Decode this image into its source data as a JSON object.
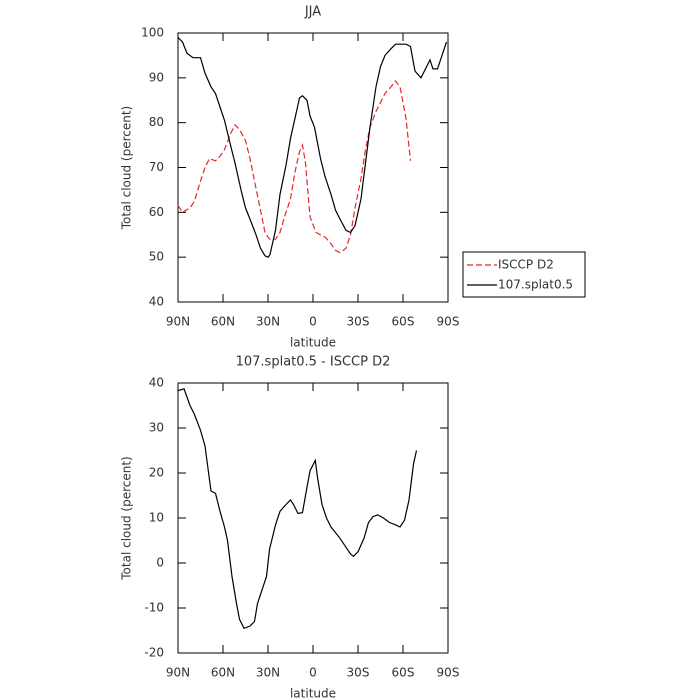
{
  "chart_data": [
    {
      "type": "line",
      "title": "JJA",
      "xlabel": "latitude",
      "ylabel": "Total cloud (percent)",
      "xlim": [
        90,
        -90
      ],
      "ylim": [
        40,
        100
      ],
      "xticks": [
        {
          "value": 90,
          "label": "90N"
        },
        {
          "value": 60,
          "label": "60N"
        },
        {
          "value": 30,
          "label": "30N"
        },
        0,
        {
          "value": -30,
          "label": "30S"
        },
        {
          "value": -60,
          "label": "60S"
        },
        {
          "value": -90,
          "label": "90S"
        }
      ],
      "yticks": [
        40,
        50,
        60,
        70,
        80,
        90,
        100
      ],
      "legend": "right",
      "series": [
        {
          "name": "ISCCP D2",
          "color": "#e8262a",
          "dashed": true,
          "x": [
            90,
            87,
            82,
            79,
            75,
            72,
            69,
            65,
            62,
            59,
            55,
            52,
            49,
            45,
            42,
            39,
            35,
            32,
            29,
            25,
            22,
            19,
            15,
            12,
            9,
            7,
            5,
            2,
            -2,
            -5,
            -8,
            -12,
            -15,
            -18,
            -22,
            -25,
            -28,
            -32,
            -35,
            -38,
            -42,
            -45,
            -48,
            -52,
            -55,
            -58,
            -62,
            -65
          ],
          "values": [
            61.5,
            60,
            61,
            62.5,
            67,
            70,
            72,
            71.5,
            72.5,
            74,
            77.5,
            79.5,
            78.5,
            76,
            72,
            67,
            60.5,
            55.5,
            54,
            54,
            55.5,
            59,
            63,
            69,
            73.5,
            75,
            71,
            59,
            55.5,
            55,
            54.5,
            53,
            51.5,
            51,
            52,
            55,
            61,
            67.5,
            74,
            79,
            82.5,
            84.5,
            86.5,
            88,
            89.3,
            88,
            81,
            71.5
          ]
        },
        {
          "name": "107.splat0.5",
          "color": "#000000",
          "dashed": false,
          "x": [
            90,
            87,
            84,
            80,
            75,
            72,
            68,
            65,
            62,
            59,
            55,
            52,
            48,
            45,
            42,
            38,
            35,
            32,
            30,
            28.7,
            25,
            22,
            18,
            15,
            12,
            9,
            7,
            4,
            2,
            -1,
            -5,
            -8,
            -12,
            -15,
            -18,
            -22,
            -25,
            -28,
            -32,
            -35,
            -38,
            -42,
            -45,
            -48,
            -52,
            -55,
            -58,
            -62,
            -65,
            -68,
            -72,
            -75,
            -78,
            -80,
            -83,
            -87,
            -89
          ],
          "values": [
            99,
            98,
            95.5,
            94.5,
            94.5,
            91,
            88,
            86.5,
            83.5,
            80.5,
            75,
            71,
            65,
            61,
            58.5,
            55,
            52,
            50.3,
            50,
            50.5,
            56,
            64,
            70.5,
            76.5,
            81,
            85.5,
            86,
            85,
            81.5,
            79,
            72,
            68,
            64,
            60.5,
            58.5,
            56,
            55.5,
            57,
            63,
            71,
            79,
            88,
            92.5,
            95,
            96.5,
            97.5,
            97.5,
            97.5,
            97,
            91.5,
            90,
            92,
            94,
            92,
            92,
            96,
            98
          ]
        }
      ]
    },
    {
      "type": "line",
      "title": "107.splat0.5 - ISCCP D2",
      "xlabel": "latitude",
      "ylabel": "Total cloud (percent)",
      "xlim": [
        90,
        -90
      ],
      "ylim": [
        -20,
        40
      ],
      "xticks": [
        {
          "value": 90,
          "label": "90N"
        },
        {
          "value": 60,
          "label": "60N"
        },
        {
          "value": 30,
          "label": "30N"
        },
        0,
        {
          "value": -30,
          "label": "30S"
        },
        {
          "value": -60,
          "label": "60S"
        },
        {
          "value": -90,
          "label": "90S"
        }
      ],
      "yticks": [
        -20,
        -10,
        0,
        10,
        20,
        30,
        40
      ],
      "series": [
        {
          "color": "#000000",
          "dashed": false,
          "x": [
            90,
            86,
            82,
            79,
            75,
            72,
            68,
            65,
            62,
            59,
            57,
            54,
            51,
            49,
            46,
            42,
            39,
            37,
            34,
            31,
            29,
            25,
            22,
            18,
            15,
            13,
            10,
            7,
            5,
            2,
            -1.5,
            -3,
            -6,
            -9,
            -12,
            -18,
            -22,
            -25,
            -27,
            -30,
            -34,
            -37,
            -40,
            -43,
            -47,
            -51,
            -55,
            -58,
            -61,
            -64,
            -67,
            -69
          ],
          "values": [
            38.3,
            38.7,
            35,
            33,
            29.5,
            26,
            16,
            15.5,
            11.5,
            8,
            5,
            -3,
            -9,
            -12.5,
            -14.5,
            -14,
            -13,
            -9,
            -6,
            -3,
            3,
            8.5,
            11.5,
            13,
            14,
            13,
            11,
            11.2,
            15,
            20.5,
            22.8,
            19,
            13,
            10,
            8,
            5.5,
            3.5,
            2,
            1.5,
            2.5,
            5.5,
            9,
            10.3,
            10.7,
            10,
            9,
            8.5,
            8,
            9.5,
            14,
            22,
            25
          ]
        }
      ]
    }
  ]
}
